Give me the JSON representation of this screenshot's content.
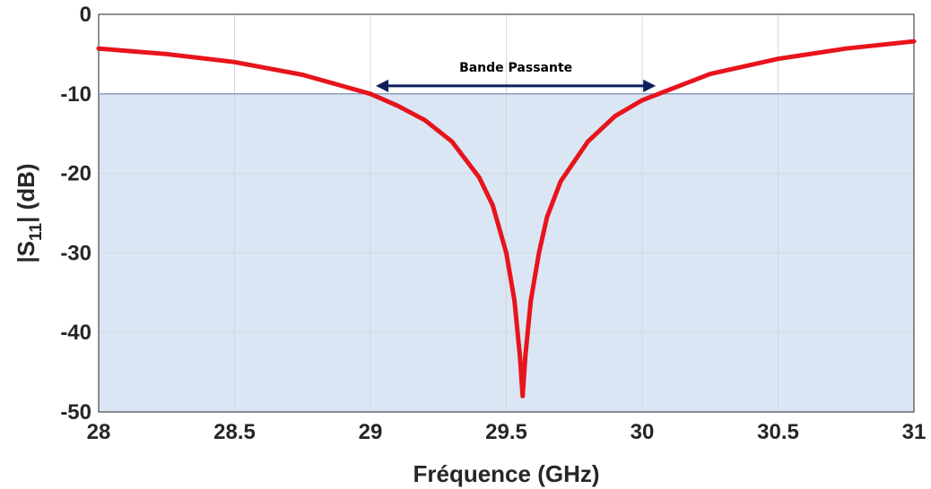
{
  "chart_data": {
    "type": "line",
    "title": "",
    "xlabel": "Fréquence (GHz)",
    "ylabel_parts": {
      "pre": "|S",
      "sub": "11",
      "post": "| (dB)"
    },
    "xlim": [
      28,
      31
    ],
    "ylim": [
      -50,
      0
    ],
    "xticks": [
      28,
      28.5,
      29,
      29.5,
      30,
      30.5,
      31
    ],
    "xtick_labels": [
      "28",
      "28.5",
      "29",
      "29.5",
      "30",
      "30.5",
      "31"
    ],
    "yticks": [
      0,
      -10,
      -20,
      -30,
      -40,
      -50
    ],
    "ytick_labels": [
      "0",
      "-10",
      "-20",
      "-30",
      "-40",
      "-50"
    ],
    "grid": true,
    "series": [
      {
        "color": "#e8141c",
        "x": [
          28.0,
          28.25,
          28.5,
          28.75,
          29.0,
          29.1,
          29.2,
          29.3,
          29.4,
          29.45,
          29.5,
          29.53,
          29.55,
          29.56,
          29.57,
          29.59,
          29.62,
          29.65,
          29.7,
          29.8,
          29.9,
          30.0,
          30.25,
          30.5,
          30.75,
          31.0
        ],
        "y": [
          -4.3,
          -5.0,
          -6.0,
          -7.6,
          -10.0,
          -11.5,
          -13.3,
          -16.0,
          -20.5,
          -24.0,
          -30.0,
          -36.0,
          -43.0,
          -48.0,
          -43.0,
          -36.0,
          -30.0,
          -25.5,
          -21.0,
          -16.0,
          -12.8,
          -10.8,
          -7.5,
          -5.6,
          -4.3,
          -3.4
        ]
      }
    ],
    "shaded_region": {
      "y_from": -50,
      "y_to": -10,
      "color": "#dae6f4"
    },
    "annotation": {
      "text": "Bande Passante",
      "x_start": 29.02,
      "x_end": 30.05,
      "y": -9.0,
      "arrow_color": "#0d1f5c"
    }
  }
}
